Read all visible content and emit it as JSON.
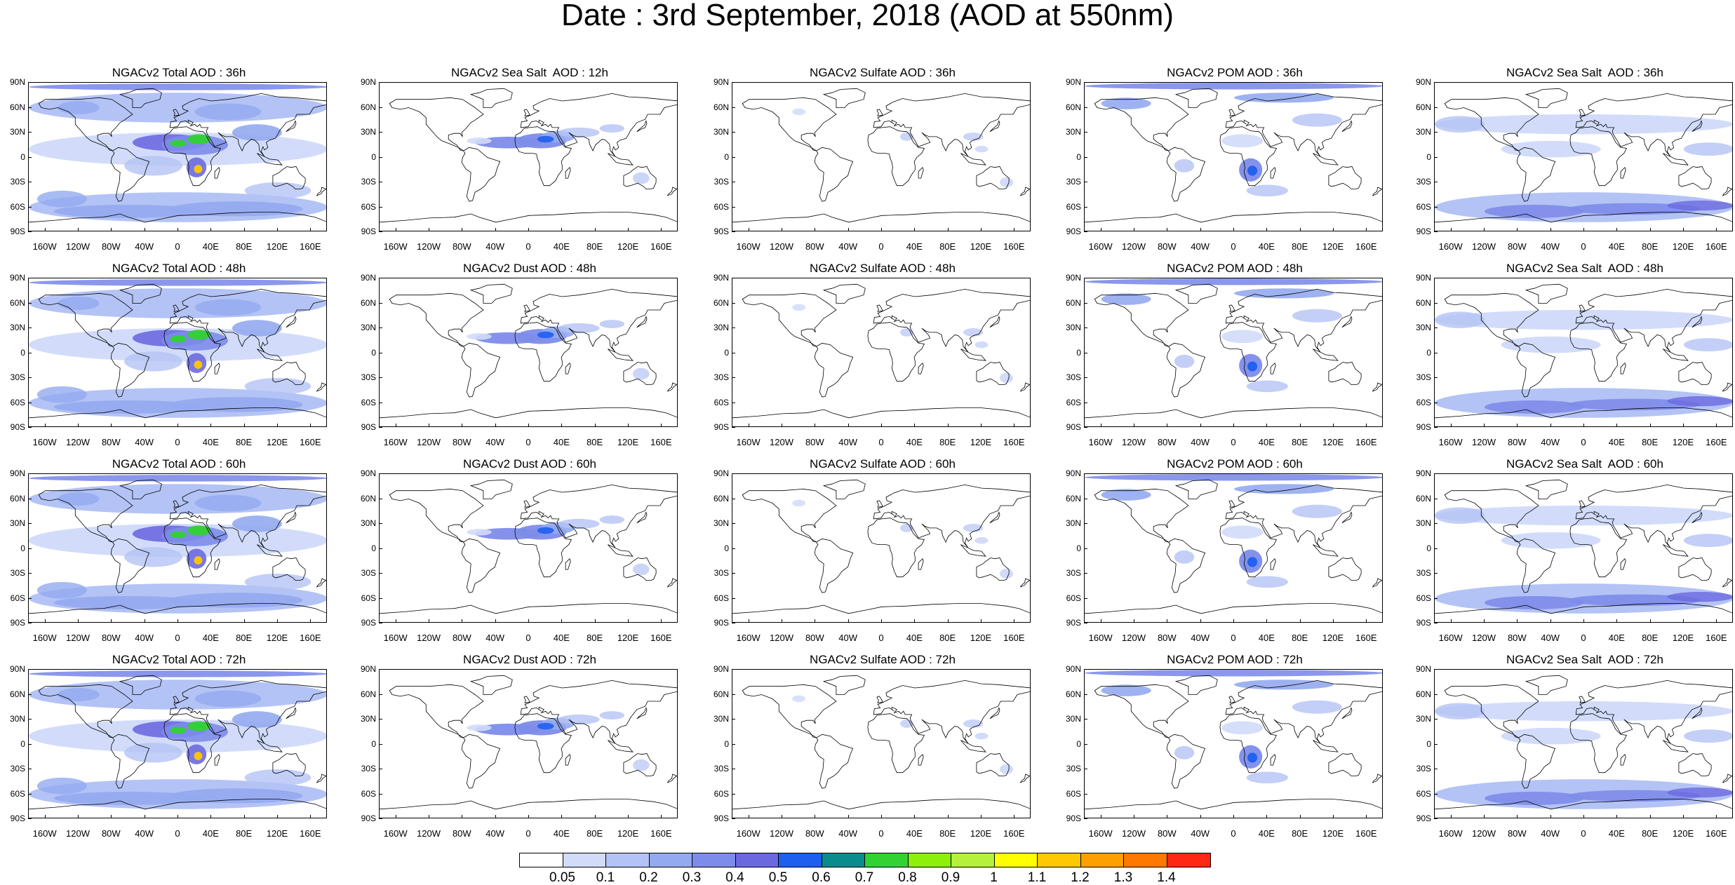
{
  "title": "Date : 3rd September, 2018 (AOD at 550nm)",
  "panels": [
    [
      "NGACv2 Total AOD : 36h",
      "NGACv2 Sea Salt  AOD : 12h",
      "NGACv2 Sulfate AOD : 36h",
      "NGACv2 POM AOD : 36h",
      "NGACv2 Sea Salt  AOD : 36h"
    ],
    [
      "NGACv2 Total AOD : 48h",
      "NGACv2 Dust AOD : 48h",
      "NGACv2 Sulfate AOD : 48h",
      "NGACv2 POM AOD : 48h",
      "NGACv2 Sea Salt  AOD : 48h"
    ],
    [
      "NGACv2 Total AOD : 60h",
      "NGACv2 Dust AOD : 60h",
      "NGACv2 Sulfate AOD : 60h",
      "NGACv2 POM AOD : 60h",
      "NGACv2 Sea Salt  AOD : 60h"
    ],
    [
      "NGACv2 Total AOD : 72h",
      "NGACv2 Dust AOD : 72h",
      "NGACv2 Sulfate AOD : 72h",
      "NGACv2 POM AOD : 72h",
      "NGACv2 Sea Salt  AOD : 72h"
    ]
  ],
  "lat_labels": [
    "90N",
    "60N",
    "30N",
    "0",
    "30S",
    "60S",
    "90S"
  ],
  "lon_labels": [
    "160W",
    "120W",
    "80W",
    "40W",
    "0",
    "40E",
    "80E",
    "120E",
    "160E"
  ],
  "colorbar": {
    "labels": [
      "0.05",
      "0.1",
      "0.2",
      "0.3",
      "0.4",
      "0.5",
      "0.6",
      "0.7",
      "0.8",
      "0.9",
      "1",
      "1.1",
      "1.2",
      "1.3",
      "1.4"
    ],
    "colors": [
      "#ffffff",
      "#d2dcfa",
      "#b4c3f5",
      "#94aaf0",
      "#7d8cea",
      "#6c69e0",
      "#1e5ff0",
      "#0b8c8c",
      "#32d232",
      "#8cf00a",
      "#b4f03c",
      "#ffff00",
      "#ffc800",
      "#ffa000",
      "#ff7800",
      "#ff2814"
    ]
  }
}
